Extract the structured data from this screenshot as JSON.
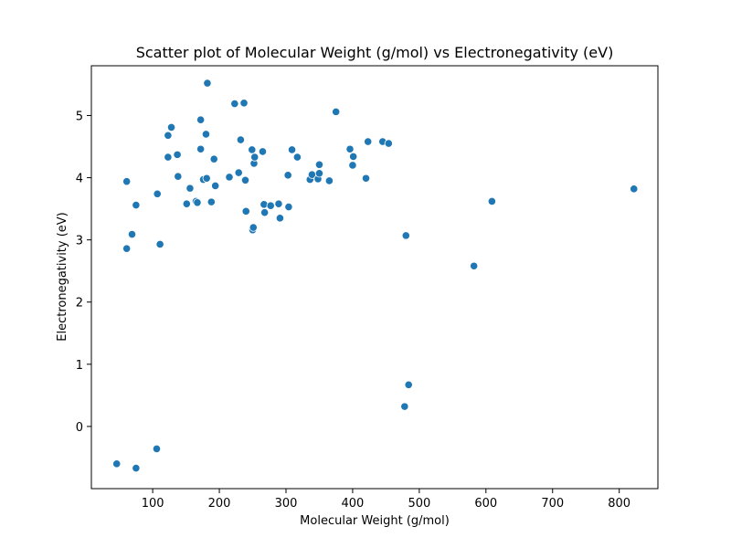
{
  "chart_data": {
    "type": "scatter",
    "title": "Scatter plot of Molecular Weight (g/mol) vs Electronegativity (eV)",
    "xlabel": "Molecular Weight (g/mol)",
    "ylabel": "Electronegativity (eV)",
    "xlim": [
      8,
      858
    ],
    "ylim": [
      -1,
      5.8
    ],
    "xticks": [
      100,
      200,
      300,
      400,
      500,
      600,
      700,
      800
    ],
    "yticks": [
      0,
      1,
      2,
      3,
      4,
      5
    ],
    "grid": false,
    "marker_color": "#1f77b4",
    "points": [
      {
        "x": 46,
        "y": -0.6
      },
      {
        "x": 61,
        "y": 3.94
      },
      {
        "x": 61,
        "y": 2.86
      },
      {
        "x": 69,
        "y": 3.09
      },
      {
        "x": 75,
        "y": 3.56
      },
      {
        "x": 75,
        "y": -0.67
      },
      {
        "x": 106,
        "y": -0.36
      },
      {
        "x": 107,
        "y": 3.74
      },
      {
        "x": 111,
        "y": 2.93
      },
      {
        "x": 123,
        "y": 4.68
      },
      {
        "x": 123,
        "y": 4.33
      },
      {
        "x": 128,
        "y": 4.81
      },
      {
        "x": 137,
        "y": 4.37
      },
      {
        "x": 138,
        "y": 4.02
      },
      {
        "x": 151,
        "y": 3.58
      },
      {
        "x": 156,
        "y": 3.83
      },
      {
        "x": 165,
        "y": 3.62
      },
      {
        "x": 167,
        "y": 3.6
      },
      {
        "x": 172,
        "y": 4.93
      },
      {
        "x": 172,
        "y": 4.46
      },
      {
        "x": 176,
        "y": 3.97
      },
      {
        "x": 180,
        "y": 4.7
      },
      {
        "x": 181,
        "y": 3.99
      },
      {
        "x": 182,
        "y": 5.52
      },
      {
        "x": 188,
        "y": 3.61
      },
      {
        "x": 192,
        "y": 4.3
      },
      {
        "x": 194,
        "y": 3.87
      },
      {
        "x": 215,
        "y": 4.01
      },
      {
        "x": 223,
        "y": 5.19
      },
      {
        "x": 229,
        "y": 4.08
      },
      {
        "x": 232,
        "y": 4.61
      },
      {
        "x": 237,
        "y": 5.2
      },
      {
        "x": 239,
        "y": 3.96
      },
      {
        "x": 240,
        "y": 3.46
      },
      {
        "x": 249,
        "y": 4.45
      },
      {
        "x": 250,
        "y": 3.16
      },
      {
        "x": 251,
        "y": 3.2
      },
      {
        "x": 252,
        "y": 4.23
      },
      {
        "x": 253,
        "y": 4.33
      },
      {
        "x": 265,
        "y": 4.42
      },
      {
        "x": 267,
        "y": 3.57
      },
      {
        "x": 268,
        "y": 3.44
      },
      {
        "x": 277,
        "y": 3.55
      },
      {
        "x": 289,
        "y": 3.58
      },
      {
        "x": 291,
        "y": 3.35
      },
      {
        "x": 303,
        "y": 4.04
      },
      {
        "x": 304,
        "y": 3.53
      },
      {
        "x": 309,
        "y": 4.45
      },
      {
        "x": 317,
        "y": 4.33
      },
      {
        "x": 336,
        "y": 3.97
      },
      {
        "x": 339,
        "y": 4.05
      },
      {
        "x": 348,
        "y": 3.98
      },
      {
        "x": 350,
        "y": 4.07
      },
      {
        "x": 350,
        "y": 4.21
      },
      {
        "x": 365,
        "y": 3.95
      },
      {
        "x": 375,
        "y": 5.06
      },
      {
        "x": 396,
        "y": 4.46
      },
      {
        "x": 400,
        "y": 4.2
      },
      {
        "x": 401,
        "y": 4.34
      },
      {
        "x": 420,
        "y": 3.99
      },
      {
        "x": 423,
        "y": 4.58
      },
      {
        "x": 445,
        "y": 4.58
      },
      {
        "x": 454,
        "y": 4.55
      },
      {
        "x": 478,
        "y": 0.32
      },
      {
        "x": 480,
        "y": 3.07
      },
      {
        "x": 484,
        "y": 0.67
      },
      {
        "x": 582,
        "y": 2.58
      },
      {
        "x": 609,
        "y": 3.62
      },
      {
        "x": 822,
        "y": 3.82
      }
    ]
  }
}
